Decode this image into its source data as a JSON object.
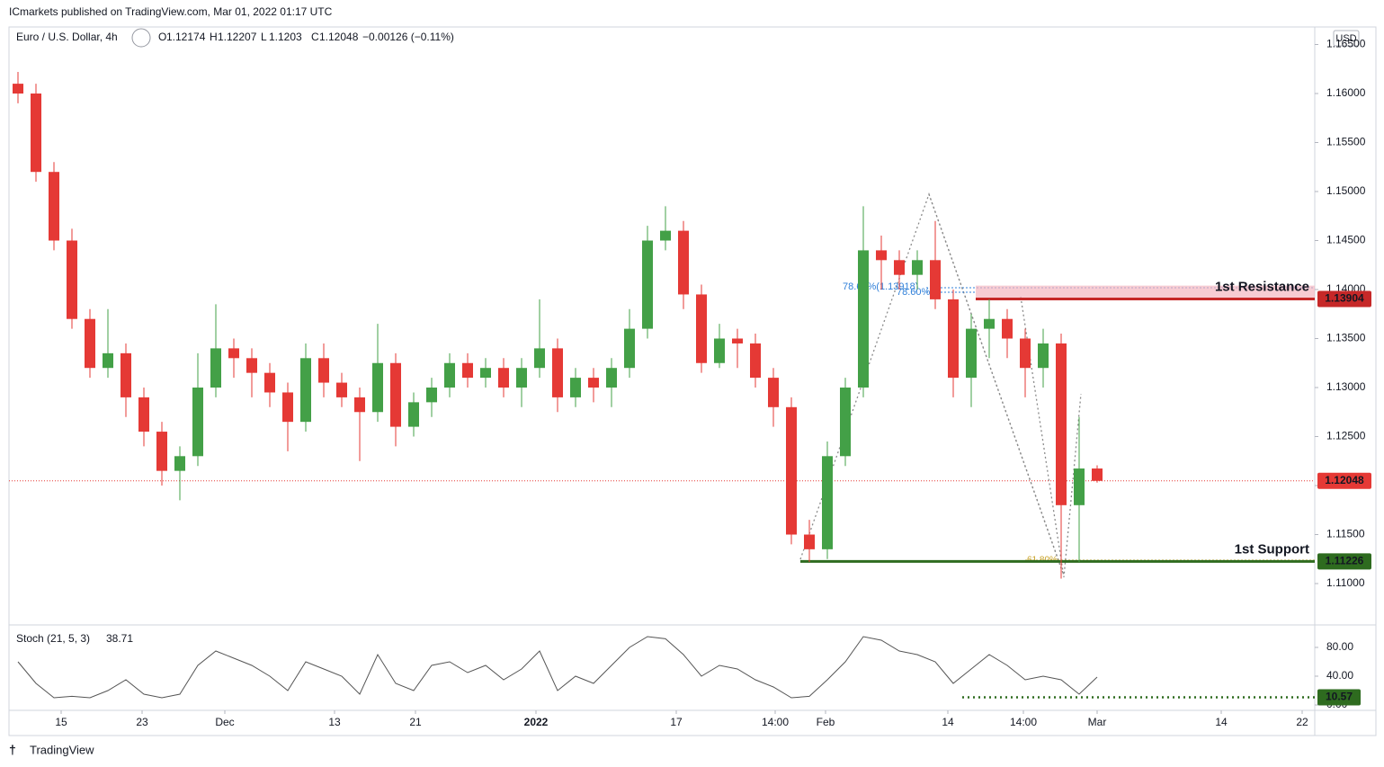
{
  "header": {
    "publisher": "ICmarkets published on TradingView.com, Mar 01, 2022 01:17 UTC",
    "symbol": "Euro / U.S. Dollar, 4h",
    "ohlc_labels": [
      "O",
      "H",
      "L",
      "C"
    ],
    "change": "−0.00126 (−0.11%)",
    "currency": "USD",
    "fib_labels": [
      "78.60%(1.13918)",
      "78.60%",
      "61.80%"
    ]
  },
  "footer": {
    "brand": "TradingView"
  },
  "chart_data": {
    "type": "candlestick",
    "up_color": "#43a047",
    "down_color": "#e53935",
    "last_color": "#e53935",
    "x": [
      0,
      1,
      2,
      3,
      4,
      5,
      6,
      7,
      8,
      9,
      10,
      11,
      12,
      13,
      14,
      15,
      16,
      17,
      18,
      19,
      20,
      21,
      22,
      23,
      24,
      25,
      26,
      27,
      28,
      29,
      30,
      31,
      32,
      33,
      34,
      35,
      36,
      37,
      38,
      39,
      40,
      41,
      42,
      43,
      44,
      45,
      46,
      47,
      48,
      49,
      50,
      51,
      52,
      53,
      54,
      55,
      56,
      57,
      58,
      59,
      60
    ],
    "open": [
      1.161,
      1.16,
      1.152,
      1.145,
      1.137,
      1.132,
      1.1335,
      1.129,
      1.1255,
      1.1215,
      1.123,
      1.13,
      1.134,
      1.133,
      1.1315,
      1.1295,
      1.1265,
      1.133,
      1.1305,
      1.129,
      1.1275,
      1.1325,
      1.126,
      1.1285,
      1.13,
      1.1325,
      1.131,
      1.132,
      1.13,
      1.132,
      1.134,
      1.129,
      1.131,
      1.13,
      1.132,
      1.136,
      1.145,
      1.146,
      1.1395,
      1.1325,
      1.135,
      1.1345,
      1.131,
      1.128,
      1.115,
      1.1135,
      1.123,
      1.13,
      1.144,
      1.143,
      1.1415,
      1.143,
      1.139,
      1.131,
      1.136,
      1.137,
      1.135,
      1.132,
      1.1345,
      1.118,
      1.12174
    ],
    "high": [
      1.1622,
      1.161,
      1.153,
      1.1462,
      1.138,
      1.138,
      1.1345,
      1.13,
      1.1265,
      1.124,
      1.1335,
      1.1385,
      1.135,
      1.134,
      1.1325,
      1.1305,
      1.1345,
      1.1345,
      1.1315,
      1.13,
      1.1365,
      1.1335,
      1.1295,
      1.131,
      1.1335,
      1.1335,
      1.133,
      1.133,
      1.133,
      1.139,
      1.135,
      1.132,
      1.132,
      1.133,
      1.138,
      1.1465,
      1.1485,
      1.147,
      1.1405,
      1.1365,
      1.136,
      1.1355,
      1.132,
      1.129,
      1.1165,
      1.1245,
      1.131,
      1.1485,
      1.1455,
      1.144,
      1.144,
      1.147,
      1.14,
      1.1375,
      1.139,
      1.138,
      1.136,
      1.136,
      1.1355,
      1.127,
      1.12207
    ],
    "low": [
      1.159,
      1.151,
      1.144,
      1.136,
      1.131,
      1.131,
      1.127,
      1.124,
      1.12,
      1.1185,
      1.122,
      1.129,
      1.131,
      1.129,
      1.128,
      1.1235,
      1.1255,
      1.129,
      1.128,
      1.1225,
      1.1265,
      1.124,
      1.125,
      1.127,
      1.129,
      1.13,
      1.13,
      1.129,
      1.128,
      1.131,
      1.1275,
      1.128,
      1.1285,
      1.128,
      1.131,
      1.135,
      1.144,
      1.138,
      1.1315,
      1.132,
      1.132,
      1.13,
      1.126,
      1.114,
      1.1122,
      1.1125,
      1.122,
      1.129,
      1.14,
      1.14,
      1.14,
      1.138,
      1.129,
      1.128,
      1.133,
      1.133,
      1.129,
      1.13,
      1.1105,
      1.1122,
      1.1203
    ],
    "close": [
      1.16,
      1.152,
      1.145,
      1.137,
      1.132,
      1.1335,
      1.129,
      1.1255,
      1.1215,
      1.123,
      1.13,
      1.134,
      1.133,
      1.1315,
      1.1295,
      1.1265,
      1.133,
      1.1305,
      1.129,
      1.1275,
      1.1325,
      1.126,
      1.1285,
      1.13,
      1.1325,
      1.131,
      1.132,
      1.13,
      1.132,
      1.134,
      1.129,
      1.131,
      1.13,
      1.132,
      1.136,
      1.145,
      1.146,
      1.1395,
      1.1325,
      1.135,
      1.1345,
      1.131,
      1.128,
      1.115,
      1.1135,
      1.123,
      1.13,
      1.144,
      1.143,
      1.1415,
      1.143,
      1.139,
      1.131,
      1.136,
      1.137,
      1.135,
      1.132,
      1.1345,
      1.118,
      1.12174,
      1.12048
    ],
    "xlim": [
      -0.5,
      72.1
    ],
    "xticks": [
      {
        "value": 2.4,
        "label": "15"
      },
      {
        "value": 6.9,
        "label": "23"
      },
      {
        "value": 11.5,
        "label": "Dec"
      },
      {
        "value": 17.6,
        "label": "13"
      },
      {
        "value": 22.1,
        "label": "21"
      },
      {
        "value": 28.8,
        "label": "2022"
      },
      {
        "value": 36.6,
        "label": "17"
      },
      {
        "value": 42.1,
        "label": "14:00"
      },
      {
        "value": 44.9,
        "label": "Feb"
      },
      {
        "value": 51.7,
        "label": "14"
      },
      {
        "value": 55.9,
        "label": "14:00"
      },
      {
        "value": 60.0,
        "label": "Mar"
      },
      {
        "value": 66.9,
        "label": "14"
      },
      {
        "value": 71.4,
        "label": "22"
      }
    ],
    "ylim": [
      1.10578,
      1.16679
    ],
    "yticks": [
      {
        "value": 1.11,
        "label": "1.11000"
      },
      {
        "value": 1.115,
        "label": "1.11500"
      },
      {
        "value": 1.12,
        "label": "1.12000"
      },
      {
        "value": 1.125,
        "label": "1.12500"
      },
      {
        "value": 1.13,
        "label": "1.13000"
      },
      {
        "value": 1.135,
        "label": "1.13500"
      },
      {
        "value": 1.14,
        "label": "1.14000"
      },
      {
        "value": 1.145,
        "label": "1.14500"
      },
      {
        "value": 1.15,
        "label": "1.15000"
      },
      {
        "value": 1.155,
        "label": "1.15500"
      },
      {
        "value": 1.16,
        "label": "1.16000"
      },
      {
        "value": 1.165,
        "label": "1.16500"
      }
    ],
    "grid": false,
    "levels": [
      {
        "name": "1st Resistance",
        "value": 1.13904,
        "zone_top": 1.1404,
        "x_start": 53.25,
        "color": "#c62828",
        "zone_color": "#f3b6c0"
      },
      {
        "name": "1st Support",
        "value": 1.11226,
        "x_start": 43.5,
        "color": "#2e6b1f"
      }
    ],
    "stoch": {
      "name": "Stoch (21, 5, 3)",
      "color": "#555555",
      "values": [
        60,
        30,
        10,
        12,
        10,
        20,
        35,
        15,
        10,
        15,
        55,
        75,
        65,
        55,
        40,
        20,
        60,
        50,
        40,
        15,
        70,
        30,
        20,
        55,
        60,
        45,
        55,
        35,
        50,
        75,
        20,
        40,
        30,
        55,
        80,
        95,
        92,
        70,
        40,
        55,
        50,
        35,
        25,
        10,
        12,
        35,
        60,
        95,
        90,
        75,
        70,
        60,
        30,
        50,
        70,
        55,
        35,
        40,
        35,
        15,
        38.71
      ],
      "ylim": [
        -7.5,
        108.75
      ],
      "yticks": [
        {
          "value": 0,
          "label": "0.00"
        },
        {
          "value": 40,
          "label": "40.00"
        },
        {
          "value": 80,
          "label": "80.00"
        }
      ],
      "level": 10.57,
      "level_x_start": 52.5,
      "level_color": "#2e6b1f"
    }
  }
}
